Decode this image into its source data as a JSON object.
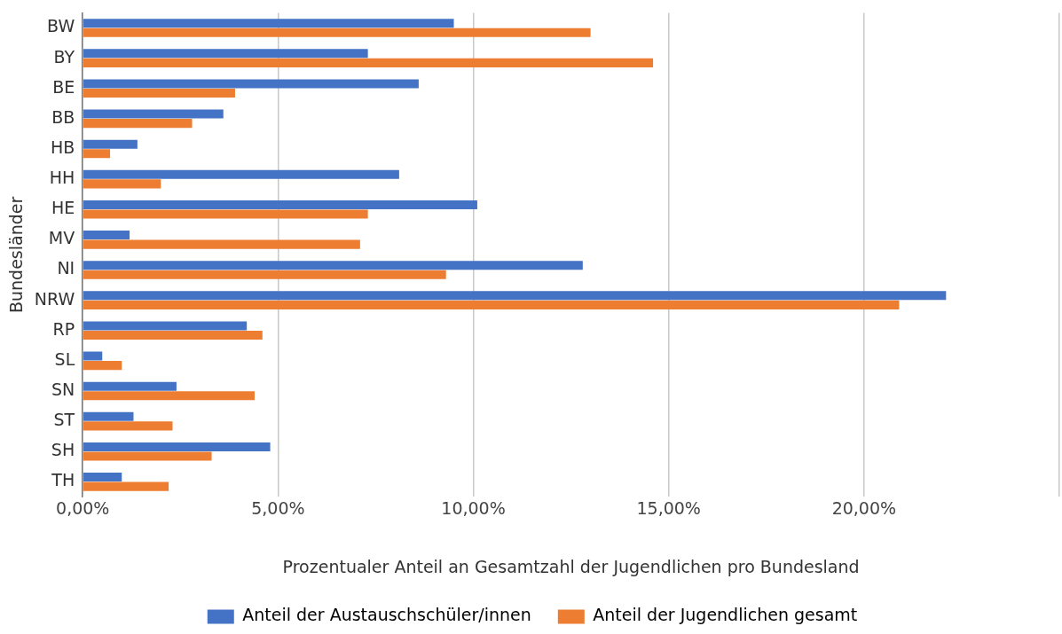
{
  "chart_data": {
    "type": "bar",
    "orientation": "horizontal",
    "xlabel": "Prozentualer Anteil an Gesamtzahl der Jugendlichen pro Bundesland",
    "ylabel": "Bundesländer",
    "categories": [
      "BW",
      "BY",
      "BE",
      "BB",
      "HB",
      "HH",
      "HE",
      "MV",
      "NI",
      "NRW",
      "RP",
      "SL",
      "SN",
      "ST",
      "SH",
      "TH"
    ],
    "series": [
      {
        "name": "Anteil der Austauschschüler/innen",
        "color": "#4472c4",
        "values": [
          9.5,
          7.3,
          8.6,
          3.6,
          1.4,
          8.1,
          10.1,
          1.2,
          12.8,
          22.1,
          4.2,
          0.5,
          2.4,
          1.3,
          4.8,
          1.0
        ]
      },
      {
        "name": "Anteil der Jugendlichen gesamt",
        "color": "#ed7d31",
        "values": [
          13.0,
          14.6,
          3.9,
          2.8,
          0.7,
          2.0,
          7.3,
          7.1,
          9.3,
          20.9,
          4.6,
          1.0,
          4.4,
          2.3,
          3.3,
          2.2
        ]
      }
    ],
    "xlim": [
      0,
      25
    ],
    "xticks": [
      {
        "value": 0,
        "label": "0,00%"
      },
      {
        "value": 5,
        "label": "5,00%"
      },
      {
        "value": 10,
        "label": "10,00%"
      },
      {
        "value": 15,
        "label": "15,00%"
      },
      {
        "value": 20,
        "label": "20,00%"
      },
      {
        "value": 25,
        "label": null
      }
    ],
    "grid": "x",
    "legend": "bottom"
  }
}
